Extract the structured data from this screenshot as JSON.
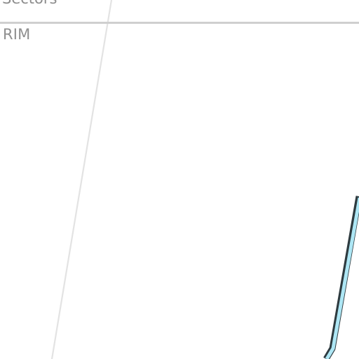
{
  "map": {
    "header_label": "Sectors",
    "region_label": "RIM",
    "colors": {
      "background": "#ffffff",
      "divider": "#cfcfcf",
      "label": "#8c8c8c",
      "grid_line": "#e3e3e3",
      "route_fill": "#aee7f5",
      "route_outline": "#2e3b40"
    }
  }
}
